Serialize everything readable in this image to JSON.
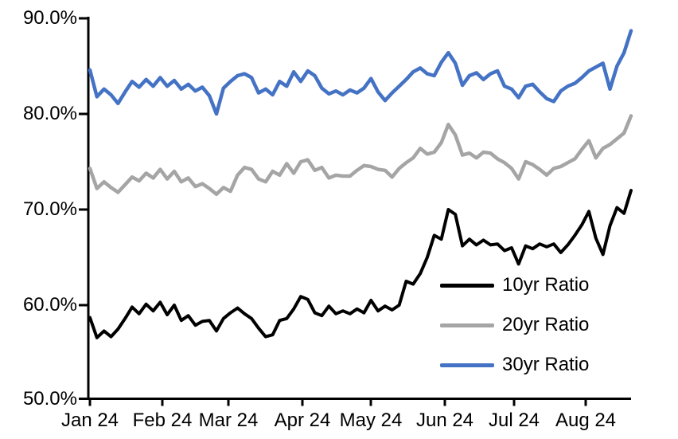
{
  "chart_data": {
    "type": "line",
    "title": "",
    "grid": false,
    "background": "#ffffff",
    "axis_color": "#000000",
    "y_axis": {
      "min": 50,
      "max": 90,
      "step": 10,
      "format": "percent"
    },
    "y_tick_labels": [
      "90.0%",
      "80.0%",
      "70.0%",
      "60.0%",
      "50.0%"
    ],
    "x_axis": {
      "start": "Jan 2024",
      "end": "late Aug 2024",
      "point_spacing_days": 3
    },
    "x_tick_labels": [
      "Jan 24",
      "Feb 24",
      "Mar 24",
      "Apr 24",
      "May 24",
      "Jun 24",
      "Jul 24",
      "Aug 24"
    ],
    "legend": {
      "position": "inside lower-right",
      "entries": [
        "10yr Ratio",
        "20yr Ratio",
        "30yr Ratio"
      ]
    },
    "series": [
      {
        "name": "10yr Ratio",
        "color": "#000000",
        "values": [
          58.7,
          56.6,
          57.3,
          56.7,
          57.5,
          58.6,
          59.8,
          59.1,
          60.1,
          59.4,
          60.3,
          59.0,
          60.0,
          58.4,
          58.9,
          57.9,
          58.3,
          58.4,
          57.3,
          58.6,
          59.2,
          59.7,
          59.1,
          58.6,
          57.6,
          56.7,
          56.9,
          58.4,
          58.6,
          59.6,
          60.9,
          60.6,
          59.2,
          58.9,
          59.9,
          59.1,
          59.4,
          59.1,
          59.6,
          59.2,
          60.5,
          59.4,
          59.9,
          59.5,
          60.0,
          62.5,
          62.2,
          63.3,
          65.0,
          67.3,
          66.9,
          70.0,
          69.5,
          66.2,
          66.9,
          66.3,
          66.8,
          66.3,
          66.4,
          65.7,
          66.0,
          64.3,
          66.2,
          65.9,
          66.4,
          66.1,
          66.4,
          65.5,
          66.3,
          67.3,
          68.4,
          69.8,
          67.0,
          65.3,
          68.3,
          70.2,
          69.6,
          72.0
        ]
      },
      {
        "name": "20yr Ratio",
        "color": "#A5A5A5",
        "values": [
          74.3,
          72.2,
          72.9,
          72.3,
          71.8,
          72.6,
          73.4,
          73.0,
          73.8,
          73.3,
          74.2,
          73.2,
          74.0,
          72.9,
          73.3,
          72.4,
          72.7,
          72.2,
          71.6,
          72.3,
          71.9,
          73.6,
          74.4,
          74.2,
          73.2,
          72.9,
          74.0,
          73.6,
          74.8,
          73.8,
          75.0,
          75.2,
          74.1,
          74.4,
          73.3,
          73.6,
          73.5,
          73.5,
          74.1,
          74.6,
          74.5,
          74.2,
          74.1,
          73.4,
          74.3,
          74.9,
          75.4,
          76.4,
          75.8,
          76.0,
          77.0,
          78.9,
          77.8,
          75.7,
          75.9,
          75.4,
          76.0,
          75.9,
          75.3,
          74.9,
          74.3,
          73.2,
          75.0,
          74.7,
          74.2,
          73.6,
          74.3,
          74.5,
          74.9,
          75.3,
          76.3,
          77.2,
          75.4,
          76.4,
          76.8,
          77.4,
          78.0,
          79.8
        ]
      },
      {
        "name": "30yr Ratio",
        "color": "#4472C4",
        "values": [
          84.6,
          81.8,
          82.6,
          82.0,
          81.1,
          82.3,
          83.4,
          82.8,
          83.6,
          82.9,
          83.8,
          82.9,
          83.5,
          82.6,
          83.1,
          82.4,
          82.8,
          81.9,
          80.0,
          82.7,
          83.4,
          84.0,
          84.2,
          83.8,
          82.2,
          82.6,
          82.0,
          83.4,
          82.9,
          84.4,
          83.4,
          84.5,
          84.0,
          82.7,
          82.1,
          82.4,
          82.0,
          82.5,
          82.2,
          82.7,
          83.7,
          82.3,
          81.4,
          82.2,
          82.9,
          83.6,
          84.4,
          84.8,
          84.2,
          84.0,
          85.4,
          86.4,
          85.3,
          83.0,
          84.0,
          84.3,
          83.6,
          84.2,
          84.5,
          82.9,
          82.6,
          81.7,
          82.9,
          83.1,
          82.3,
          81.6,
          81.3,
          82.4,
          82.9,
          83.2,
          83.8,
          84.5,
          84.9,
          85.3,
          82.6,
          85.0,
          86.4,
          88.7
        ]
      }
    ]
  }
}
